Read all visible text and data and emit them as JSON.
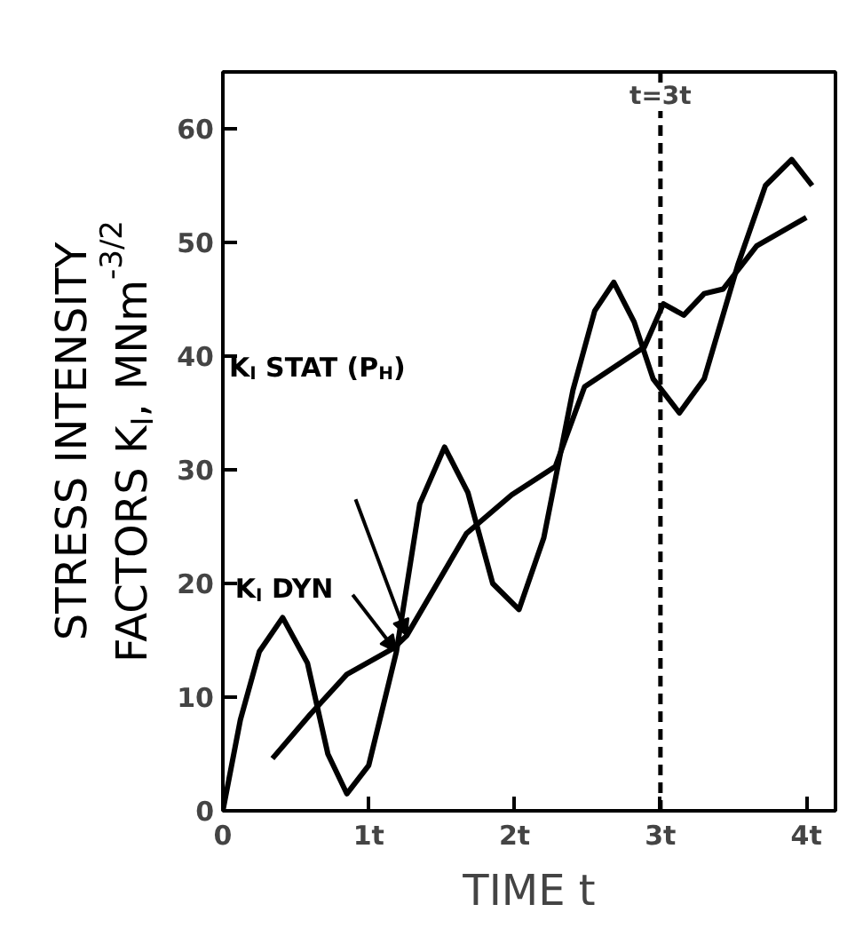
{
  "chart_data": {
    "type": "line",
    "xlabel": "TIME t",
    "ylabel": "STRESS INTENSITY\nFACTORS K$_{I}$, MNm$^{-3/2}$",
    "xlim": [
      0,
      4.2
    ],
    "ylim": [
      0,
      65
    ],
    "xticks": [
      0,
      {
        "value": 1,
        "label": "1t"
      },
      {
        "value": 2,
        "label": "2t"
      },
      {
        "value": 3,
        "label": "3t"
      },
      {
        "value": 4,
        "label": "4t"
      }
    ],
    "yticks": [
      0,
      10,
      20,
      30,
      40,
      50,
      60
    ],
    "grid": false,
    "marker": "none",
    "line_style": "solid",
    "legend": "left",
    "ref_lines": [
      {
        "axis": "x",
        "value": 3,
        "line_style": "dashed",
        "color": "#000000"
      }
    ],
    "annotations": [
      "t=3t"
    ],
    "series": [
      {
        "name": "K$_{I}$ DYN",
        "color": "#000000",
        "x": [
          0,
          0.12,
          0.25,
          0.41,
          0.58,
          0.72,
          0.85,
          1.0,
          1.19,
          1.35,
          1.52,
          1.68,
          1.85,
          2.03,
          2.2,
          2.4,
          2.55,
          2.68,
          2.82,
          2.95,
          3.13,
          3.3,
          3.53,
          3.72,
          3.9,
          4.04
        ],
        "values": [
          0,
          8,
          14,
          17,
          13,
          5,
          1.5,
          4,
          14,
          27,
          32,
          28,
          20,
          17.7,
          24,
          37,
          44,
          46.5,
          43,
          38,
          35,
          38,
          48,
          55,
          57.3,
          55
        ]
      },
      {
        "name": "K$_{I}$ STAT (P$_{H}$)",
        "color": "#000000",
        "x": [
          0.34,
          0.6,
          0.85,
          1.17,
          1.26,
          1.67,
          1.98,
          2.28,
          2.48,
          2.89,
          3.02,
          3.16,
          3.3,
          3.43,
          3.66,
          4.0
        ],
        "values": [
          4.6,
          8.5,
          12,
          14.3,
          15.4,
          24.4,
          27.8,
          30.3,
          37.3,
          40.8,
          44.6,
          43.6,
          45.5,
          45.9,
          49.7,
          52.2
        ]
      }
    ]
  }
}
